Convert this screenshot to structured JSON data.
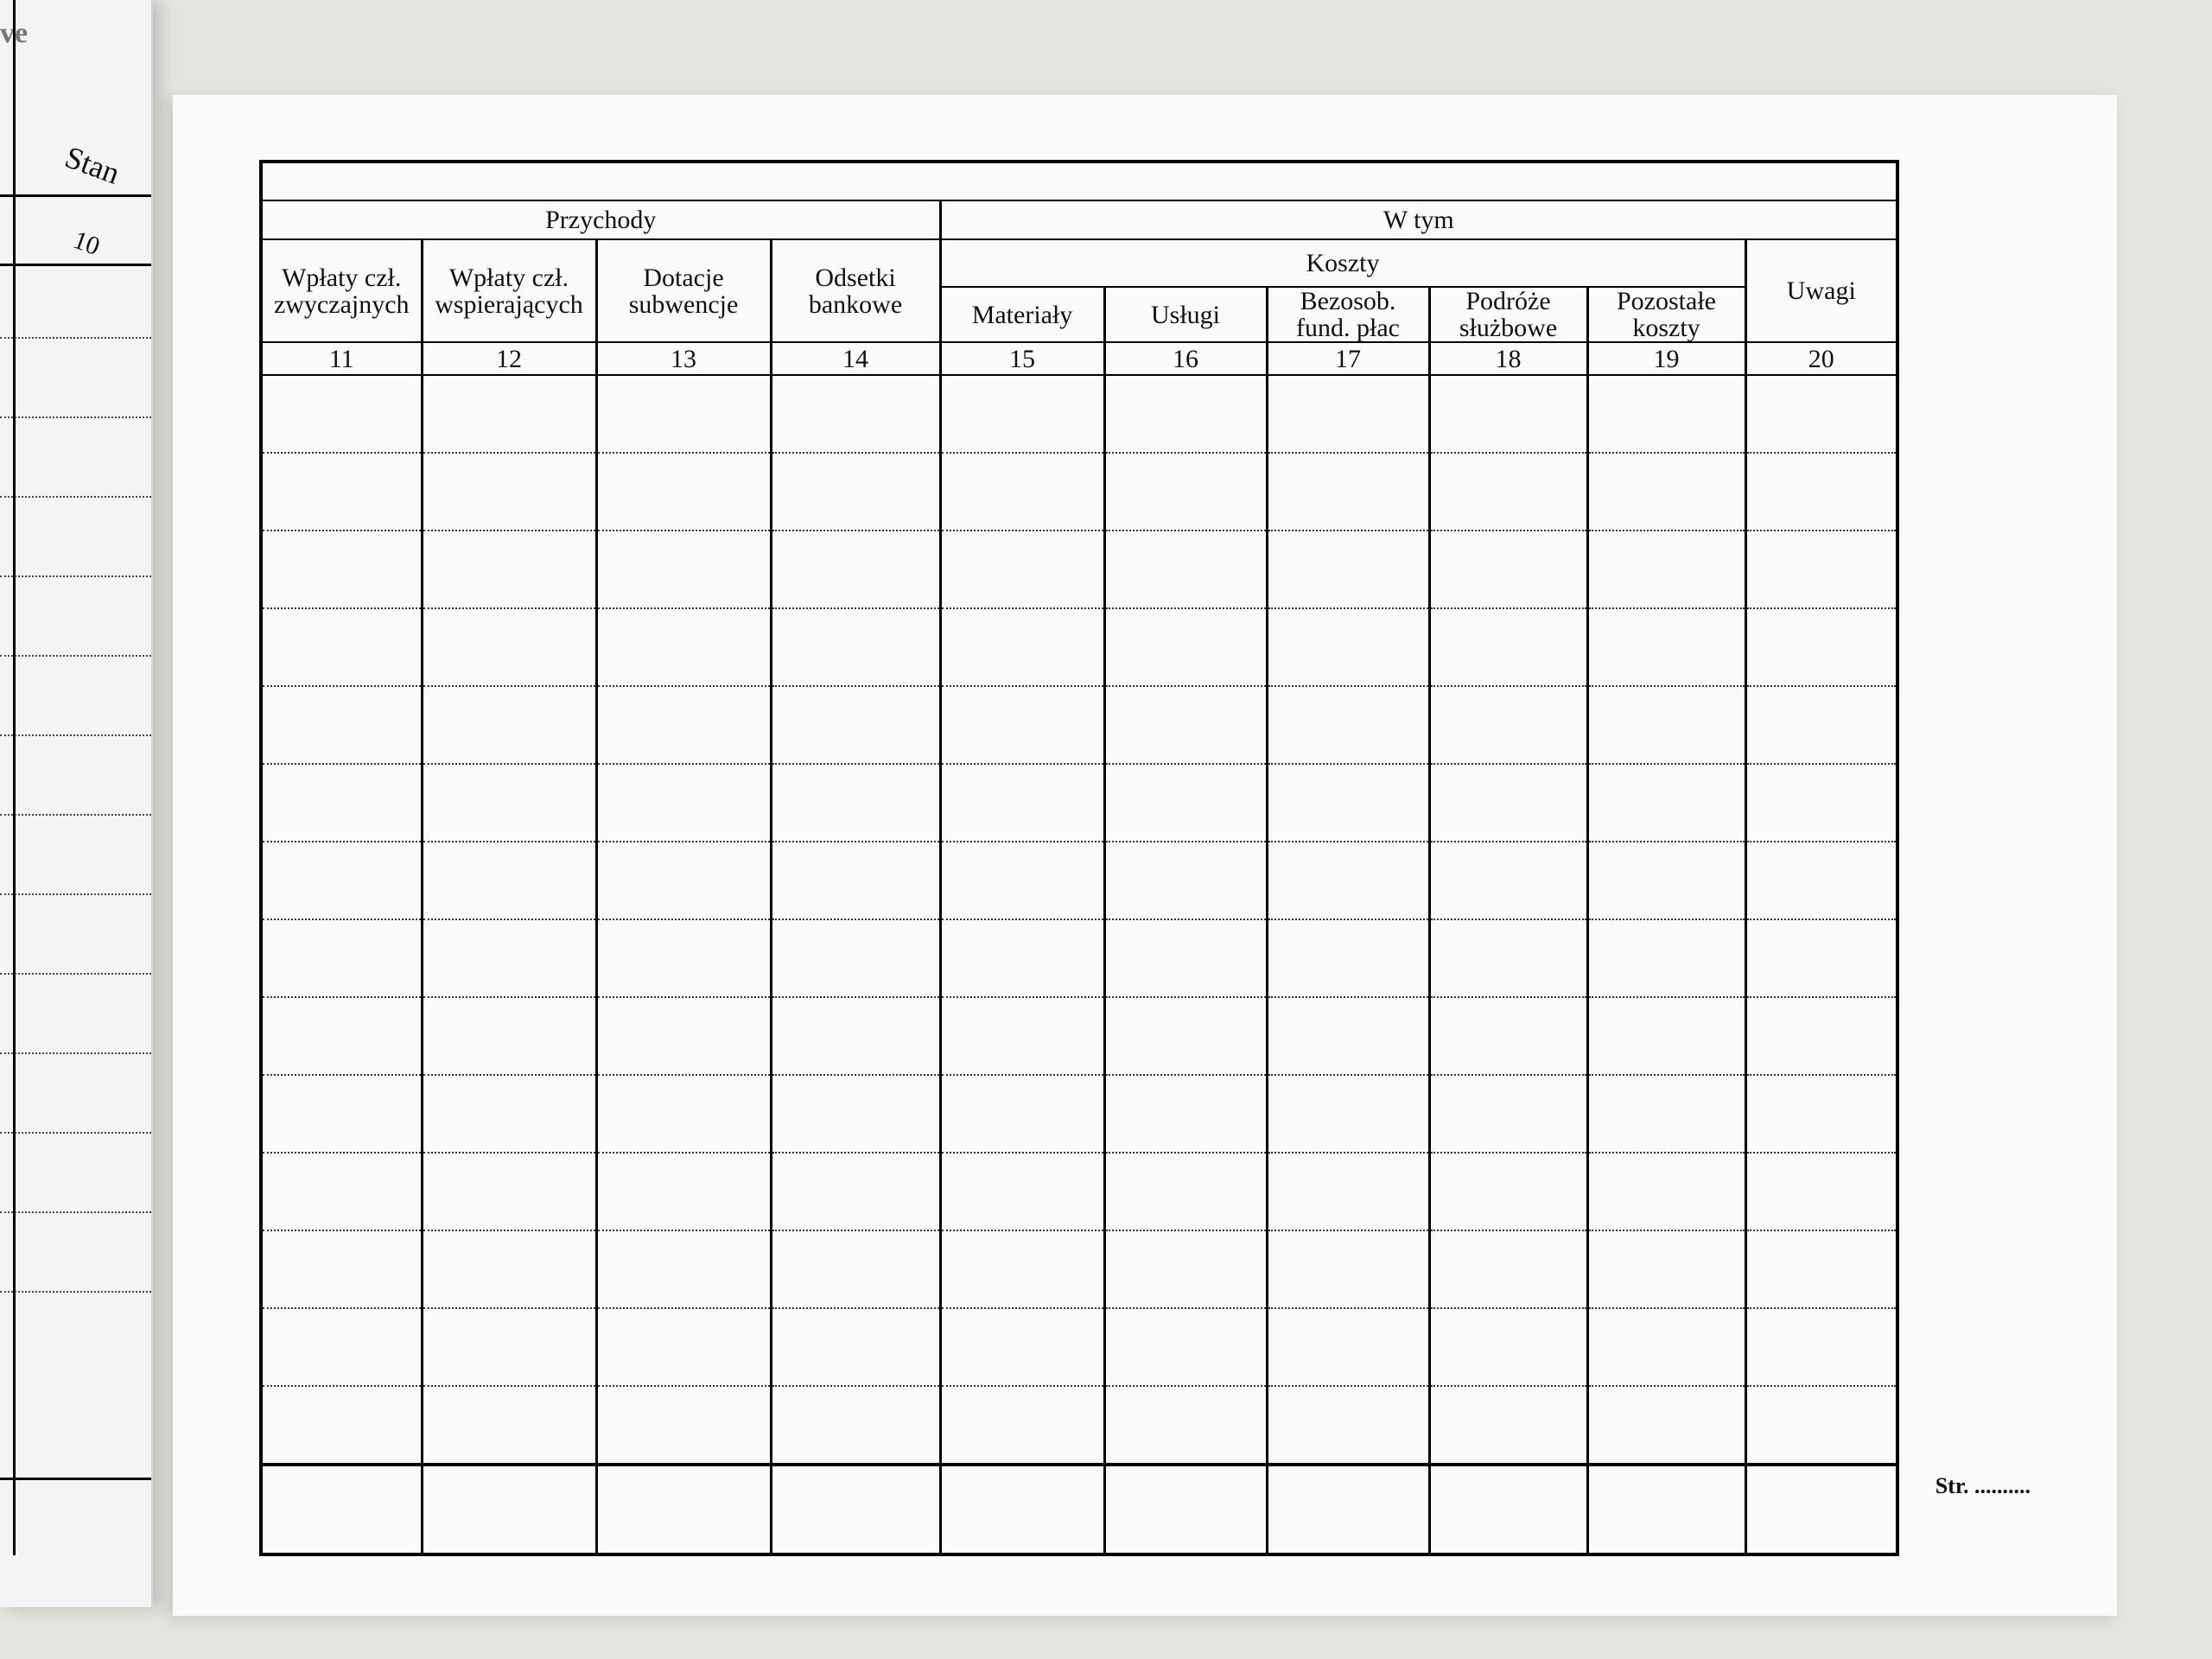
{
  "left_page": {
    "header_fragment": "ve",
    "column_title": "Stan",
    "column_number": "10"
  },
  "table": {
    "group_header": "W tym",
    "income_header": "Przychody",
    "costs_header": "Koszty",
    "income_columns": [
      {
        "lines": [
          "Wpłaty czł.",
          "zwyczajnych"
        ],
        "number": "11"
      },
      {
        "lines": [
          "Wpłaty czł.",
          "wspierających"
        ],
        "number": "12"
      },
      {
        "lines": [
          "Dotacje",
          "subwencje"
        ],
        "number": "13"
      },
      {
        "lines": [
          "Odsetki",
          "bankowe"
        ],
        "number": "14"
      }
    ],
    "cost_columns": [
      {
        "lines": [
          "Materiały"
        ],
        "number": "15"
      },
      {
        "lines": [
          "Usługi"
        ],
        "number": "16"
      },
      {
        "lines": [
          "Bezosob.",
          "fund. płac"
        ],
        "number": "17"
      },
      {
        "lines": [
          "Podróże",
          "służbowe"
        ],
        "number": "18"
      },
      {
        "lines": [
          "Pozostałe",
          "koszty"
        ],
        "number": "19"
      }
    ],
    "remarks_column": {
      "lines": [
        "Uwagi"
      ],
      "number": "20"
    }
  },
  "footer": {
    "page_label": "Str. .........."
  }
}
